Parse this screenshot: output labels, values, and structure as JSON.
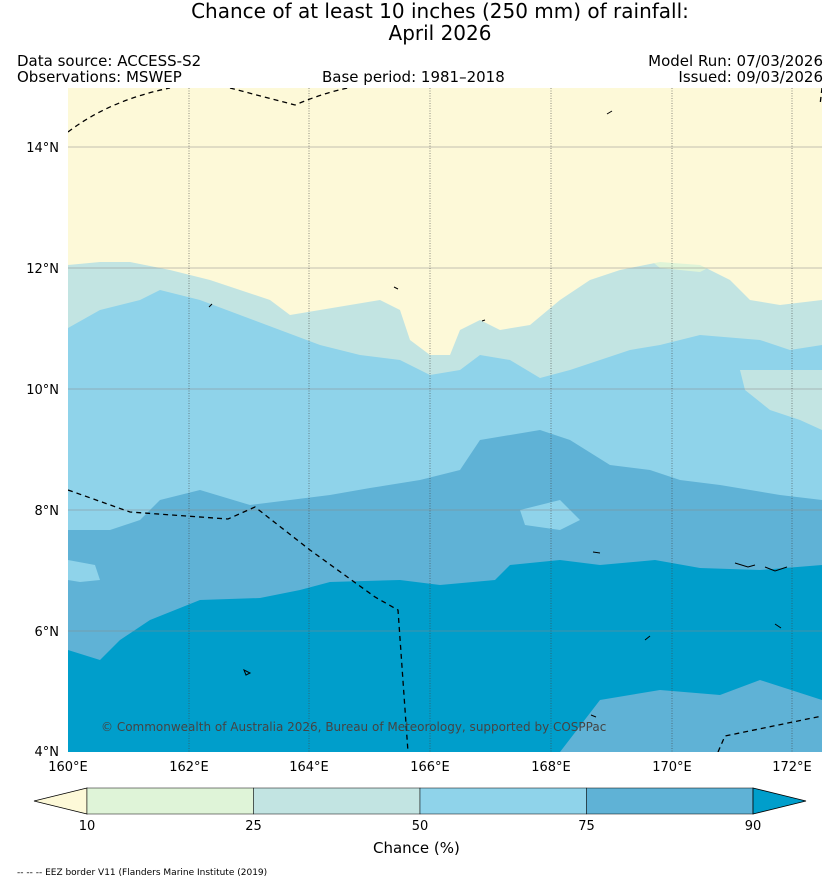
{
  "title": {
    "line1": "Chance of at least 10 inches (250  mm) of rainfall:",
    "line2": "April 2026"
  },
  "meta": {
    "data_source": "Data source: ACCESS-S2",
    "observations": "Observations: MSWEP",
    "base_period": "Base period: 1981–2018",
    "model_run": "Model Run: 07/03/2026",
    "issued": "Issued: 09/03/2026"
  },
  "map": {
    "lat_labels": [
      "14°N",
      "12°N",
      "10°N",
      "8°N",
      "6°N",
      "4°N"
    ],
    "lon_labels": [
      "160°E",
      "162°E",
      "164°E",
      "166°E",
      "168°E",
      "170°E",
      "172°E"
    ],
    "copyright": "© Commonwealth of Australia 2026, Bureau of Meteorology, supported by COSPPac"
  },
  "colorbar": {
    "ticks": [
      "10",
      "25",
      "50",
      "75",
      "90"
    ],
    "title": "Chance (%)",
    "colors": [
      "#fdf9d8",
      "#dff4d8",
      "#c2e4e2",
      "#8fd3ea",
      "#5fb2d6",
      "#009ecb"
    ]
  },
  "footnote": "-- -- -- EEZ border V11 (Flanders Marine Institute (2019)"
}
